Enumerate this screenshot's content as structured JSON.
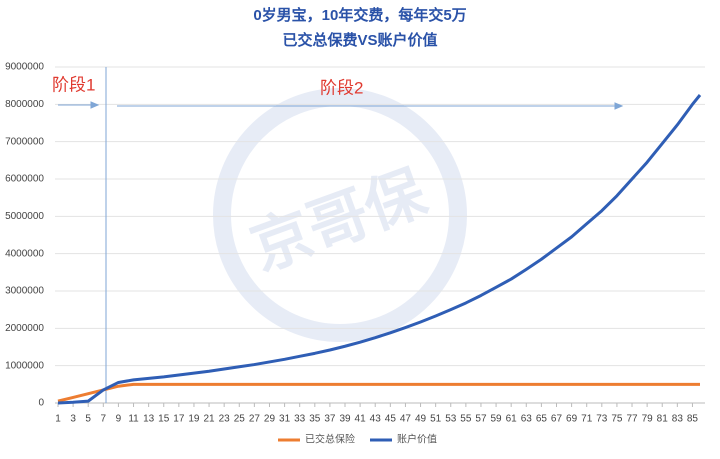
{
  "chart_data": {
    "type": "line",
    "title": "0岁男宝，10年交费，每年交5万",
    "subtitle": "已交总保费VS账户价值",
    "annotations": [
      "阶段1",
      "阶段2"
    ],
    "watermark": "京哥保",
    "x": [
      1,
      3,
      5,
      7,
      9,
      11,
      13,
      15,
      17,
      19,
      21,
      23,
      25,
      27,
      29,
      31,
      33,
      35,
      37,
      39,
      41,
      43,
      45,
      47,
      49,
      51,
      53,
      55,
      57,
      59,
      61,
      63,
      65,
      67,
      69,
      71,
      73,
      75,
      77,
      79,
      81,
      83,
      85,
      86
    ],
    "series": [
      {
        "name": "已交总保险",
        "color": "#ed7d31",
        "values": [
          50000,
          150000,
          250000,
          350000,
          450000,
          500000,
          500000,
          500000,
          500000,
          500000,
          500000,
          500000,
          500000,
          500000,
          500000,
          500000,
          500000,
          500000,
          500000,
          500000,
          500000,
          500000,
          500000,
          500000,
          500000,
          500000,
          500000,
          500000,
          500000,
          500000,
          500000,
          500000,
          500000,
          500000,
          500000,
          500000,
          500000,
          500000,
          500000,
          500000,
          500000,
          500000,
          500000,
          500000
        ]
      },
      {
        "name": "账户价值",
        "color": "#2f5eb5",
        "values": [
          0,
          20000,
          50000,
          350000,
          550000,
          620000,
          660000,
          700000,
          750000,
          800000,
          850000,
          910000,
          970000,
          1030000,
          1100000,
          1170000,
          1250000,
          1330000,
          1420000,
          1520000,
          1630000,
          1750000,
          1880000,
          2020000,
          2170000,
          2330000,
          2500000,
          2680000,
          2880000,
          3100000,
          3320000,
          3580000,
          3850000,
          4150000,
          4450000,
          4800000,
          5150000,
          5550000,
          6000000,
          6450000,
          6950000,
          7450000,
          8000000,
          8250000
        ]
      }
    ],
    "xlim": [
      1,
      86
    ],
    "xticks": [
      1,
      3,
      5,
      7,
      9,
      11,
      13,
      15,
      17,
      19,
      21,
      23,
      25,
      27,
      29,
      31,
      33,
      35,
      37,
      39,
      41,
      43,
      45,
      47,
      49,
      51,
      53,
      55,
      57,
      59,
      61,
      63,
      65,
      67,
      69,
      71,
      73,
      75,
      77,
      79,
      81,
      83,
      85
    ],
    "ylim": [
      0,
      9000000
    ],
    "yticks": [
      0,
      1000000,
      2000000,
      3000000,
      4000000,
      5000000,
      6000000,
      7000000,
      8000000,
      9000000
    ],
    "grid": true
  }
}
